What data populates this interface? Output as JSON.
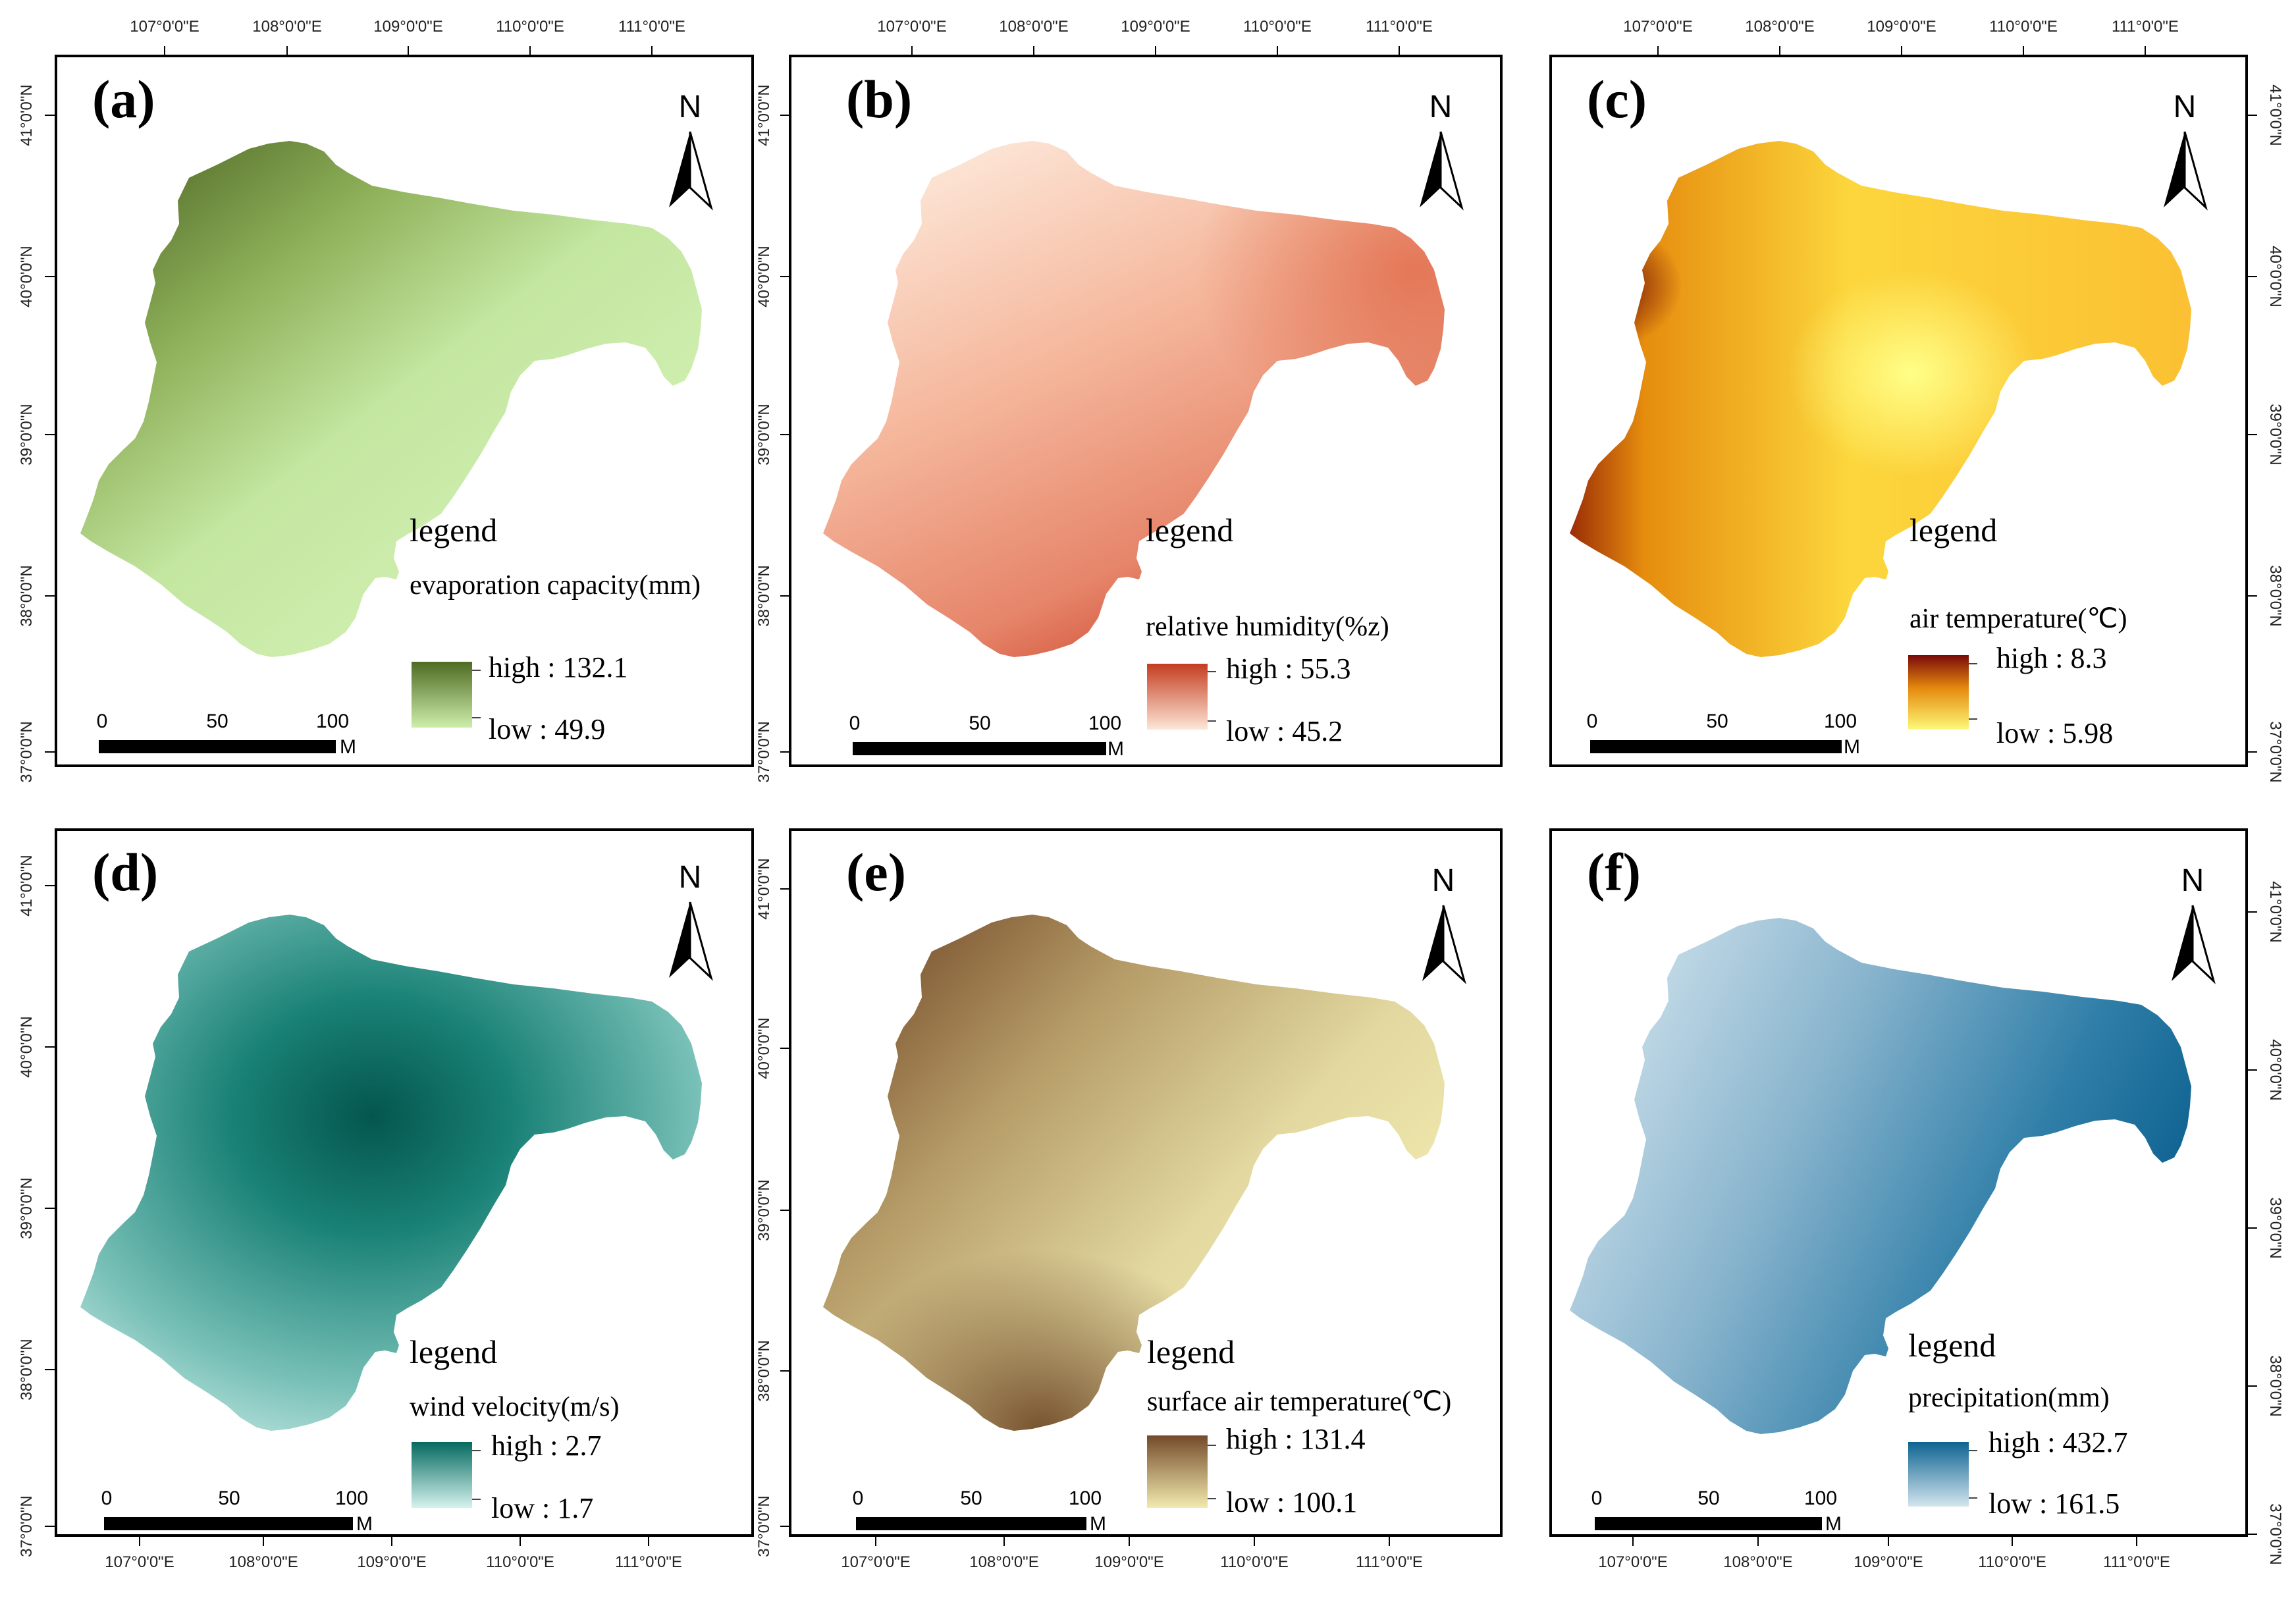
{
  "figure": {
    "panels": [
      {
        "id": "a",
        "label": "(a)",
        "north": "N",
        "legend_title": "legend",
        "variable": "evaporation capacity(mm)",
        "high_label": "high : 132.1",
        "low_label": "low : 49.9",
        "high_color": "#4f6a22",
        "low_color": "#cdeeab",
        "scale_labels": [
          "0",
          "50",
          "100"
        ],
        "scale_unit": "M"
      },
      {
        "id": "b",
        "label": "(b)",
        "north": "N",
        "legend_title": "legend",
        "variable": "relative humidity(%z)",
        "high_label": "high : 55.3",
        "low_label": "low : 45.2",
        "high_color": "#c43d20",
        "low_color": "#fde6d7",
        "scale_labels": [
          "0",
          "50",
          "100"
        ],
        "scale_unit": "M"
      },
      {
        "id": "c",
        "label": "(c)",
        "north": "N",
        "legend_title": "legend",
        "variable": "air temperature(℃)",
        "high_label": "high : 8.3",
        "low_label": "low : 5.98",
        "high_color": "#7a0a0a",
        "low_color": "#fdf776",
        "scale_labels": [
          "0",
          "50",
          "100"
        ],
        "scale_unit": "M"
      },
      {
        "id": "d",
        "label": "(d)",
        "north": "N",
        "legend_title": "legend",
        "variable": "wind velocity(m/s)",
        "high_label": "high : 2.7",
        "low_label": "low : 1.7",
        "high_color": "#046a5f",
        "low_color": "#d6f2ee",
        "scale_labels": [
          "0",
          "50",
          "100"
        ],
        "scale_unit": "M"
      },
      {
        "id": "e",
        "label": "(e)",
        "north": "N",
        "legend_title": "legend",
        "variable": "surface air temperature(℃)",
        "high_label": "high : 131.4",
        "low_label": "low : 100.1",
        "high_color": "#744a2a",
        "low_color": "#f2eaae",
        "scale_labels": [
          "0",
          "50",
          "100"
        ],
        "scale_unit": "M"
      },
      {
        "id": "f",
        "label": "(f)",
        "north": "N",
        "legend_title": "legend",
        "variable": "precipitation(mm)",
        "high_label": "high : 432.7",
        "low_label": "low : 161.5",
        "high_color": "#0d6491",
        "low_color": "#d3e5ee",
        "scale_labels": [
          "0",
          "50",
          "100"
        ],
        "scale_unit": "M"
      }
    ],
    "lon_labels": [
      "107°0'0\"E",
      "108°0'0\"E",
      "109°0'0\"E",
      "110°0'0\"E",
      "111°0'0\"E"
    ],
    "lat_labels": [
      "41°0'0\"N",
      "40°0'0\"N",
      "39°0'0\"N",
      "38°0'0\"N",
      "37°0'0\"N"
    ]
  }
}
